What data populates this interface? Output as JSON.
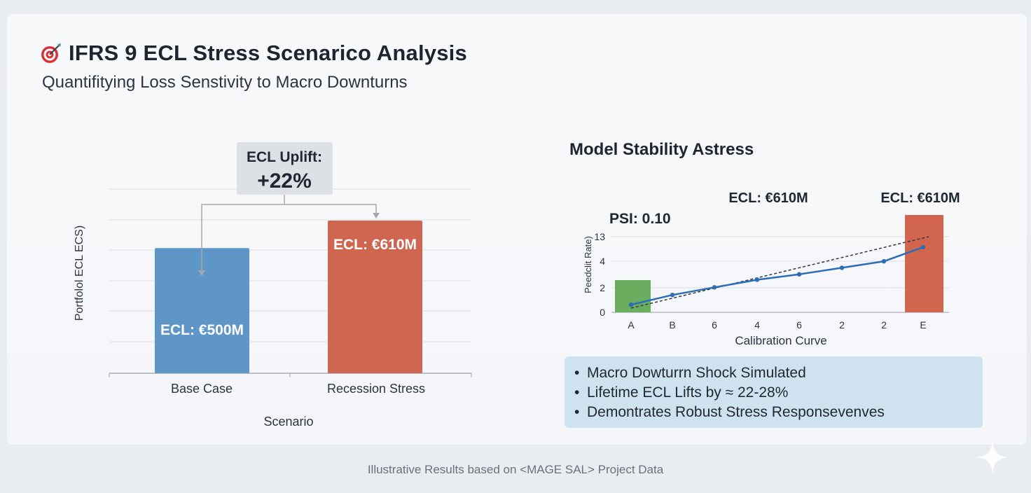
{
  "header": {
    "title": "IFRS 9 ECL Stress Scenarico Analysis",
    "subtitle": "Quantifitying Loss Senstivity to Macro Downturns",
    "icon": "target-dart-icon"
  },
  "left_chart": {
    "ylabel": "Portfolol ECL ECS)",
    "xlabel": "Scenario",
    "uplift_label": "ECL Uplift:",
    "uplift_value": "+22%",
    "bars": [
      {
        "category": "Base Case",
        "label": "ECL: €500M",
        "value": 500,
        "color": "#5e96c8"
      },
      {
        "category": "Recession Stress",
        "label": "ECL: €610M",
        "value": 610,
        "color": "#cf6650"
      }
    ]
  },
  "right_chart": {
    "title": "Model Stability Astress",
    "psi_label": "PSI: 0.10",
    "top_label_1": "ECL: €610M",
    "top_label_2": "ECL: €610M",
    "ylabel": "Peedclit Rate)",
    "xlabel": "Calibration Curve",
    "yticks": [
      "0",
      "2",
      "4",
      "13"
    ],
    "xticks": [
      "A",
      "B",
      "6",
      "4",
      "6",
      "2",
      "2",
      "E"
    ],
    "green_color": "#6aad5e",
    "red_color": "#d2654e",
    "line_color": "#2d6db5"
  },
  "chart_data": [
    {
      "type": "bar",
      "title": "",
      "xlabel": "Scenario",
      "ylabel": "Portfolol ECL ECS)",
      "categories": [
        "Base Case",
        "Recession Stress"
      ],
      "values": [
        500,
        610
      ],
      "annotations": [
        "ECL: €500M",
        "ECL: €610M",
        "ECL Uplift: +22%"
      ],
      "grid": true
    },
    {
      "type": "line",
      "title": "Model Stability Astress",
      "xlabel": "Calibration Curve",
      "ylabel": "Peedclit Rate)",
      "categories": [
        "A",
        "B",
        "6",
        "4",
        "6",
        "2",
        "2",
        "E"
      ],
      "series": [
        {
          "values": [
            0.7,
            1.6,
            2.3,
            3.0,
            3.5,
            4.1,
            4.7,
            6.0
          ]
        }
      ],
      "reference_line": "dashed diagonal",
      "annotations": [
        "PSI: 0.10",
        "ECL: €610M",
        "ECL: €610M"
      ],
      "yticks": [
        "0",
        "2",
        "4",
        "13"
      ]
    }
  ],
  "bullets": [
    "Macro Dowturrn Shock Simulated",
    "Lifetime ECL Lifts by ≈ 22-28%",
    "Demontrates Robust Stress Responsevenves"
  ],
  "footer": "Illustrative Results based on <MAGE SAL> Project Data"
}
